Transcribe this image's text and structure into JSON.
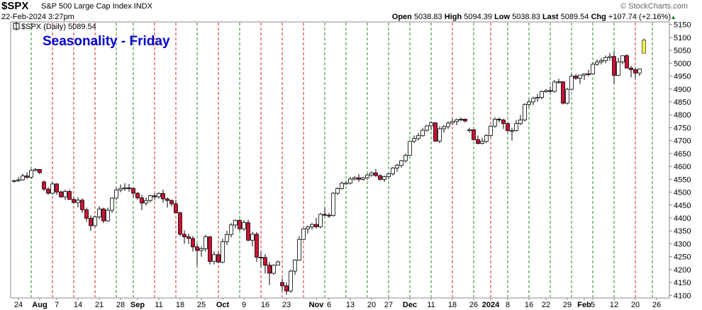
{
  "header": {
    "symbol": "$SPX",
    "name": "S&P 500 Large Cap Index INDX",
    "date": "22-Feb-2024 3:27pm",
    "copyright": "© StockCharts.com",
    "open_label": "Open",
    "open_value": "5038.83",
    "high_label": "High",
    "high_value": "5094.39",
    "low_label": "Low",
    "low_value": "5038.83",
    "last_label": "Last",
    "last_value": "5089.54",
    "chg_label": "Chg",
    "chg_value": "+107.74 (+2.16%)",
    "up_icon": "triangle-up-icon",
    "legend": "$SPX (Daily) 5089.54"
  },
  "chart_data": {
    "type": "candlestick",
    "title": "Seasonality - Friday",
    "title_color": "#0000cc",
    "up_color": "#ffffff",
    "down_color": "#cc1133",
    "last_bar_color": "#ffee44",
    "vline_red": "#cc2222",
    "vline_green": "#228822",
    "ylim": [
      4090,
      5160
    ],
    "y_ticks": [
      4100,
      4150,
      4200,
      4250,
      4300,
      4350,
      4400,
      4450,
      4500,
      4550,
      4600,
      4650,
      4700,
      4750,
      4800,
      4850,
      4900,
      4950,
      5000,
      5050,
      5100,
      5150
    ],
    "x_ticks": [
      {
        "label": "24",
        "bar": 1,
        "bold": false
      },
      {
        "label": "Aug",
        "bar": 6,
        "bold": true
      },
      {
        "label": "7",
        "bar": 10,
        "bold": false
      },
      {
        "label": "14",
        "bar": 15,
        "bold": false
      },
      {
        "label": "21",
        "bar": 20,
        "bold": false
      },
      {
        "label": "28",
        "bar": 25,
        "bold": false
      },
      {
        "label": "Sep",
        "bar": 29,
        "bold": true
      },
      {
        "label": "11",
        "bar": 34,
        "bold": false
      },
      {
        "label": "18",
        "bar": 39,
        "bold": false
      },
      {
        "label": "25",
        "bar": 44,
        "bold": false
      },
      {
        "label": "Oct",
        "bar": 49,
        "bold": true
      },
      {
        "label": "9",
        "bar": 54,
        "bold": false
      },
      {
        "label": "16",
        "bar": 59,
        "bold": false
      },
      {
        "label": "23",
        "bar": 64,
        "bold": false
      },
      {
        "label": "Nov",
        "bar": 71,
        "bold": true
      },
      {
        "label": "6",
        "bar": 74,
        "bold": false
      },
      {
        "label": "13",
        "bar": 79,
        "bold": false
      },
      {
        "label": "20",
        "bar": 84,
        "bold": false
      },
      {
        "label": "27",
        "bar": 88,
        "bold": false
      },
      {
        "label": "Dec",
        "bar": 93,
        "bold": true
      },
      {
        "label": "11",
        "bar": 98,
        "bold": false
      },
      {
        "label": "18",
        "bar": 103,
        "bold": false
      },
      {
        "label": "26",
        "bar": 108,
        "bold": false
      },
      {
        "label": "2024",
        "bar": 112,
        "bold": true
      },
      {
        "label": "8",
        "bar": 116,
        "bold": false
      },
      {
        "label": "16",
        "bar": 121,
        "bold": false
      },
      {
        "label": "22",
        "bar": 125,
        "bold": false
      },
      {
        "label": "29",
        "bar": 130,
        "bold": false
      },
      {
        "label": "Feb",
        "bar": 134,
        "bold": true
      },
      {
        "label": "5",
        "bar": 136,
        "bold": false
      },
      {
        "label": "12",
        "bar": 141,
        "bold": false
      },
      {
        "label": "20",
        "bar": 146,
        "bold": false
      },
      {
        "label": "26",
        "bar": 151,
        "bold": false
      }
    ],
    "friday_lines": [
      {
        "bar": 4,
        "color": "green"
      },
      {
        "bar": 9,
        "color": "red"
      },
      {
        "bar": 14,
        "color": "red"
      },
      {
        "bar": 19,
        "color": "red"
      },
      {
        "bar": 24,
        "color": "green"
      },
      {
        "bar": 28,
        "color": "green"
      },
      {
        "bar": 33,
        "color": "red"
      },
      {
        "bar": 38,
        "color": "red"
      },
      {
        "bar": 43,
        "color": "green"
      },
      {
        "bar": 48,
        "color": "red"
      },
      {
        "bar": 53,
        "color": "green"
      },
      {
        "bar": 58,
        "color": "red"
      },
      {
        "bar": 63,
        "color": "red"
      },
      {
        "bar": 68,
        "color": "red"
      },
      {
        "bar": 73,
        "color": "green"
      },
      {
        "bar": 78,
        "color": "green"
      },
      {
        "bar": 83,
        "color": "green"
      },
      {
        "bar": 88,
        "color": "green"
      },
      {
        "bar": 93,
        "color": "green"
      },
      {
        "bar": 98,
        "color": "green"
      },
      {
        "bar": 103,
        "color": "red"
      },
      {
        "bar": 108,
        "color": "green"
      },
      {
        "bar": 112,
        "color": "red"
      },
      {
        "bar": 116,
        "color": "green"
      },
      {
        "bar": 121,
        "color": "green"
      },
      {
        "bar": 126,
        "color": "green"
      },
      {
        "bar": 131,
        "color": "green"
      },
      {
        "bar": 136,
        "color": "green"
      },
      {
        "bar": 141,
        "color": "green"
      },
      {
        "bar": 146,
        "color": "red"
      },
      {
        "bar": 150,
        "color": "green"
      }
    ],
    "candles": [
      [
        4544,
        4549,
        4537,
        4545
      ],
      [
        4545,
        4558,
        4540,
        4548
      ],
      [
        4548,
        4572,
        4544,
        4563
      ],
      [
        4563,
        4577,
        4552,
        4558
      ],
      [
        4558,
        4590,
        4552,
        4584
      ],
      [
        4584,
        4594,
        4580,
        4588
      ],
      [
        4588,
        4590,
        4570,
        4576
      ],
      [
        4540,
        4545,
        4505,
        4512
      ],
      [
        4512,
        4520,
        4490,
        4496
      ],
      [
        4496,
        4540,
        4490,
        4532
      ],
      [
        4532,
        4535,
        4490,
        4501
      ],
      [
        4501,
        4506,
        4478,
        4482
      ],
      [
        4482,
        4510,
        4470,
        4503
      ],
      [
        4503,
        4510,
        4470,
        4472
      ],
      [
        4472,
        4480,
        4455,
        4460
      ],
      [
        4460,
        4480,
        4442,
        4469
      ],
      [
        4469,
        4476,
        4420,
        4432
      ],
      [
        4432,
        4440,
        4385,
        4399
      ],
      [
        4399,
        4410,
        4350,
        4370
      ],
      [
        4370,
        4410,
        4364,
        4404
      ],
      [
        4404,
        4445,
        4395,
        4435
      ],
      [
        4435,
        4440,
        4380,
        4389
      ],
      [
        4389,
        4440,
        4385,
        4430
      ],
      [
        4430,
        4480,
        4420,
        4477
      ],
      [
        4477,
        4520,
        4470,
        4509
      ],
      [
        4509,
        4530,
        4500,
        4515
      ],
      [
        4515,
        4535,
        4505,
        4517
      ],
      [
        4517,
        4532,
        4502,
        4515
      ],
      [
        4515,
        4517,
        4480,
        4496
      ],
      [
        4496,
        4500,
        4470,
        4478
      ],
      [
        4478,
        4490,
        4430,
        4458
      ],
      [
        4458,
        4480,
        4448,
        4468
      ],
      [
        4468,
        4490,
        4460,
        4486
      ],
      [
        4486,
        4495,
        4470,
        4482
      ],
      [
        4482,
        4500,
        4475,
        4495
      ],
      [
        4495,
        4510,
        4460,
        4474
      ],
      [
        4474,
        4480,
        4440,
        4468
      ],
      [
        4468,
        4472,
        4445,
        4455
      ],
      [
        4455,
        4470,
        4418,
        4420
      ],
      [
        4420,
        4425,
        4330,
        4337
      ],
      [
        4337,
        4352,
        4300,
        4327
      ],
      [
        4327,
        4340,
        4300,
        4321
      ],
      [
        4321,
        4330,
        4270,
        4288
      ],
      [
        4288,
        4300,
        4215,
        4274
      ],
      [
        4274,
        4290,
        4250,
        4281
      ],
      [
        4281,
        4335,
        4270,
        4327
      ],
      [
        4327,
        4330,
        4220,
        4232
      ],
      [
        4232,
        4270,
        4220,
        4258
      ],
      [
        4258,
        4270,
        4225,
        4229
      ],
      [
        4229,
        4320,
        4225,
        4308
      ],
      [
        4308,
        4350,
        4295,
        4336
      ],
      [
        4336,
        4380,
        4325,
        4373
      ],
      [
        4373,
        4395,
        4360,
        4391
      ],
      [
        4391,
        4395,
        4350,
        4358
      ],
      [
        4358,
        4392,
        4350,
        4382
      ],
      [
        4382,
        4393,
        4310,
        4314
      ],
      [
        4314,
        4347,
        4290,
        4337
      ],
      [
        4337,
        4346,
        4230,
        4248
      ],
      [
        4248,
        4270,
        4210,
        4247
      ],
      [
        4247,
        4260,
        4185,
        4217
      ],
      [
        4217,
        4230,
        4140,
        4186
      ],
      [
        4186,
        4220,
        4180,
        4217
      ],
      [
        4217,
        4235,
        4220,
        4230
      ],
      [
        4150,
        4165,
        4120,
        4137
      ],
      [
        4137,
        4150,
        4103,
        4117
      ],
      [
        4117,
        4200,
        4110,
        4194
      ],
      [
        4194,
        4240,
        4180,
        4237
      ],
      [
        4237,
        4330,
        4235,
        4317
      ],
      [
        4317,
        4360,
        4315,
        4358
      ],
      [
        4358,
        4370,
        4340,
        4365
      ],
      [
        4365,
        4380,
        4355,
        4375
      ],
      [
        4375,
        4400,
        4360,
        4366
      ],
      [
        4366,
        4420,
        4360,
        4414
      ],
      [
        4414,
        4440,
        4405,
        4411
      ],
      [
        4411,
        4420,
        4400,
        4410
      ],
      [
        4410,
        4500,
        4405,
        4496
      ],
      [
        4496,
        4520,
        4490,
        4514
      ],
      [
        4514,
        4540,
        4510,
        4535
      ],
      [
        4535,
        4545,
        4530,
        4535
      ],
      [
        4535,
        4560,
        4530,
        4551
      ],
      [
        4551,
        4562,
        4545,
        4556
      ],
      [
        4556,
        4570,
        4540,
        4550
      ],
      [
        4550,
        4560,
        4545,
        4556
      ],
      [
        4556,
        4570,
        4548,
        4567
      ],
      [
        4567,
        4580,
        4560,
        4575
      ],
      [
        4575,
        4590,
        4560,
        4564
      ],
      [
        4564,
        4570,
        4545,
        4550
      ],
      [
        4550,
        4565,
        4540,
        4560
      ],
      [
        4560,
        4575,
        4550,
        4571
      ],
      [
        4571,
        4598,
        4565,
        4594
      ],
      [
        4594,
        4610,
        4580,
        4604
      ],
      [
        4604,
        4625,
        4595,
        4622
      ],
      [
        4622,
        4650,
        4615,
        4643
      ],
      [
        4643,
        4700,
        4640,
        4697
      ],
      [
        4697,
        4720,
        4690,
        4708
      ],
      [
        4708,
        4730,
        4700,
        4719
      ],
      [
        4719,
        4750,
        4715,
        4740
      ],
      [
        4740,
        4760,
        4735,
        4757
      ],
      [
        4757,
        4775,
        4740,
        4769
      ],
      [
        4769,
        4770,
        4695,
        4698
      ],
      [
        4698,
        4755,
        4690,
        4746
      ],
      [
        4746,
        4760,
        4730,
        4754
      ],
      [
        4754,
        4775,
        4745,
        4768
      ],
      [
        4768,
        4785,
        4760,
        4774
      ],
      [
        4774,
        4785,
        4760,
        4781
      ],
      [
        4781,
        4790,
        4775,
        4783
      ],
      [
        4783,
        4785,
        4770,
        4776
      ],
      [
        4742,
        4750,
        4730,
        4742
      ],
      [
        4742,
        4745,
        4700,
        4704
      ],
      [
        4704,
        4720,
        4685,
        4689
      ],
      [
        4689,
        4710,
        4685,
        4697
      ],
      [
        4697,
        4725,
        4690,
        4720
      ],
      [
        4720,
        4760,
        4715,
        4756
      ],
      [
        4756,
        4790,
        4750,
        4783
      ],
      [
        4783,
        4790,
        4770,
        4780
      ],
      [
        4780,
        4785,
        4745,
        4766
      ],
      [
        4766,
        4770,
        4730,
        4739
      ],
      [
        4739,
        4750,
        4700,
        4739
      ],
      [
        4739,
        4780,
        4735,
        4766
      ],
      [
        4766,
        4800,
        4760,
        4780
      ],
      [
        4780,
        4845,
        4775,
        4840
      ],
      [
        4840,
        4860,
        4830,
        4850
      ],
      [
        4850,
        4870,
        4838,
        4864
      ],
      [
        4864,
        4880,
        4850,
        4868
      ],
      [
        4868,
        4895,
        4860,
        4890
      ],
      [
        4890,
        4900,
        4885,
        4894
      ],
      [
        4894,
        4910,
        4885,
        4891
      ],
      [
        4891,
        4935,
        4885,
        4927
      ],
      [
        4927,
        4940,
        4920,
        4928
      ],
      [
        4928,
        4930,
        4840,
        4845
      ],
      [
        4845,
        4905,
        4840,
        4899
      ],
      [
        4899,
        4960,
        4895,
        4950
      ],
      [
        4950,
        4958,
        4935,
        4942
      ],
      [
        4942,
        4955,
        4920,
        4954
      ],
      [
        4954,
        4960,
        4935,
        4959
      ],
      [
        4959,
        4975,
        4950,
        4958
      ],
      [
        4958,
        5005,
        4955,
        4996
      ],
      [
        4996,
        5015,
        4990,
        5005
      ],
      [
        5005,
        5020,
        4995,
        5010
      ],
      [
        5010,
        5030,
        5000,
        5022
      ],
      [
        5022,
        5040,
        5010,
        5026
      ],
      [
        5026,
        5048,
        4920,
        4953
      ],
      [
        4953,
        5020,
        4950,
        5005
      ],
      [
        5005,
        5030,
        4995,
        5029
      ],
      [
        5029,
        5035,
        4990,
        4981
      ],
      [
        4981,
        4990,
        4945,
        4975
      ],
      [
        4975,
        4985,
        4940,
        4962
      ],
      [
        4962,
        4980,
        4950,
        4978
      ],
      [
        5038.83,
        5094.39,
        5038.83,
        5089.54
      ]
    ]
  }
}
